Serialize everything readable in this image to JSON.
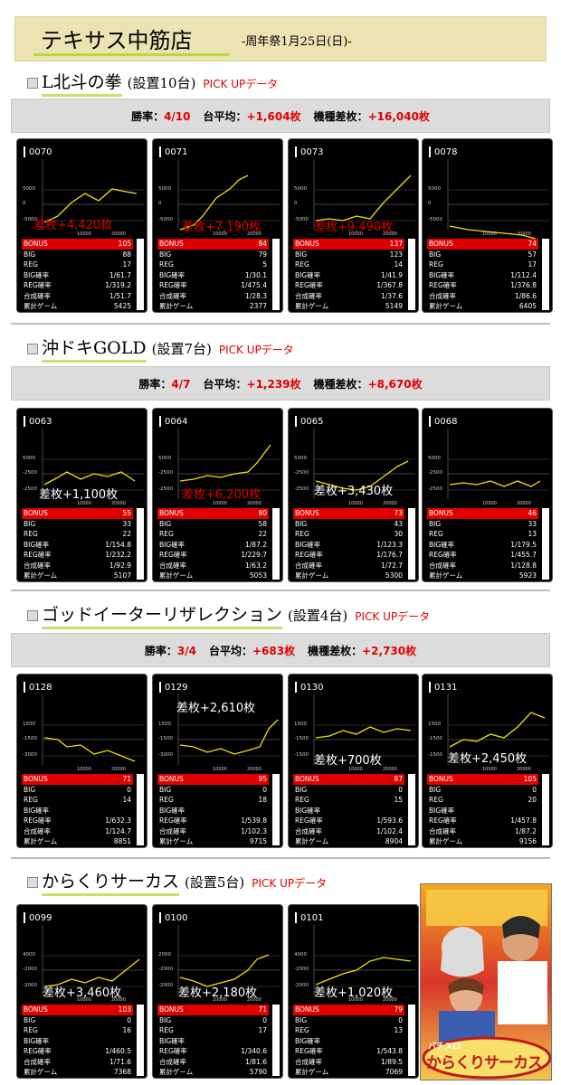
{
  "header": {
    "title": "テキサス中筋店",
    "subtitle": "-周年祭1月25日(日)-"
  },
  "sections": [
    {
      "machine": "L北斗の拳",
      "count_label": "(設置10台)",
      "pick_label": "PICK UPデータ",
      "stats": {
        "win_label": "勝率：",
        "win": "4/10",
        "avg_label": "台平均：",
        "avg": "+1,604枚",
        "diff_label": "機種差枚：",
        "diff": "+16,040枚"
      },
      "cards": [
        {
          "no": "0070",
          "diff": "差枚+4,420枚",
          "diff_color": "red",
          "bonus": "105",
          "big": "88",
          "reg": "17",
          "big_rate": "1/61.7",
          "reg_rate": "1/319.2",
          "total_rate": "1/51.7",
          "games": "5425",
          "axis_top": "5000",
          "axis_mid": "0",
          "axis_bot": "-5000",
          "x1": "10000",
          "x2": "20000"
        },
        {
          "no": "0071",
          "diff": "差枚+7,190枚",
          "diff_color": "red",
          "bonus": "84",
          "big": "79",
          "reg": "5",
          "big_rate": "1/30.1",
          "reg_rate": "1/475.4",
          "total_rate": "1/28.3",
          "games": "2377",
          "axis_top": "5000",
          "axis_mid": "0",
          "axis_bot": "-5000",
          "x1": "10000",
          "x2": "20000"
        },
        {
          "no": "0073",
          "diff": "差枚+9,490枚",
          "diff_color": "red",
          "bonus": "137",
          "big": "123",
          "reg": "14",
          "big_rate": "1/41.9",
          "reg_rate": "1/367.8",
          "total_rate": "1/37.6",
          "games": "5149",
          "axis_top": "5000",
          "axis_mid": "0",
          "axis_bot": "-5000",
          "x1": "10000",
          "x2": "20000"
        },
        {
          "no": "0078",
          "diff": "",
          "diff_color": "red",
          "bonus": "74",
          "big": "57",
          "reg": "17",
          "big_rate": "1/112.4",
          "reg_rate": "1/376.8",
          "total_rate": "1/86.6",
          "games": "6405",
          "axis_top": "5000",
          "axis_mid": "0",
          "axis_bot": "-5000",
          "x1": "10000",
          "x2": "20000"
        }
      ]
    },
    {
      "machine": "沖ドキGOLD",
      "count_label": "(設置7台)",
      "pick_label": "PICK UPデータ",
      "stats": {
        "win_label": "勝率：",
        "win": "4/7",
        "avg_label": "台平均：",
        "avg": "+1,239枚",
        "diff_label": "機種差枚：",
        "diff": "+8,670枚"
      },
      "cards": [
        {
          "no": "0063",
          "diff": "差枚+1,100枚",
          "diff_color": "white",
          "bonus": "55",
          "big": "33",
          "reg": "22",
          "big_rate": "1/154.8",
          "reg_rate": "1/232.2",
          "total_rate": "1/92.9",
          "games": "5107",
          "axis_top": "5000",
          "axis_mid": "-2500",
          "axis_bot": "-2500",
          "x1": "10000",
          "x2": "20000"
        },
        {
          "no": "0064",
          "diff": "差枚+6,200枚",
          "diff_color": "red",
          "bonus": "80",
          "big": "58",
          "reg": "22",
          "big_rate": "1/87.2",
          "reg_rate": "1/229.7",
          "total_rate": "1/63.2",
          "games": "5053",
          "axis_top": "5000",
          "axis_mid": "-2500",
          "axis_bot": "-2500",
          "x1": "10000",
          "x2": "20000"
        },
        {
          "no": "0065",
          "diff": "差枚+3,430枚",
          "diff_color": "white",
          "bonus": "73",
          "big": "43",
          "reg": "30",
          "big_rate": "1/123.3",
          "reg_rate": "1/176.7",
          "total_rate": "1/72.7",
          "games": "5300",
          "axis_top": "5000",
          "axis_mid": "-2500",
          "axis_bot": "-2500",
          "x1": "10000",
          "x2": "20000"
        },
        {
          "no": "0068",
          "diff": "",
          "diff_color": "white",
          "bonus": "46",
          "big": "33",
          "reg": "13",
          "big_rate": "1/179.5",
          "reg_rate": "1/455.7",
          "total_rate": "1/128.8",
          "games": "5923",
          "axis_top": "5000",
          "axis_mid": "-2500",
          "axis_bot": "-2500",
          "x1": "10000",
          "x2": "20000"
        }
      ]
    },
    {
      "machine": "ゴッドイーターリザレクション",
      "count_label": "(設置4台)",
      "pick_label": "PICK UPデータ",
      "stats": {
        "win_label": "勝率：",
        "win": "3/4",
        "avg_label": "台平均：",
        "avg": "+683枚",
        "diff_label": "機種差枚：",
        "diff": "+2,730枚"
      },
      "cards": [
        {
          "no": "0128",
          "diff": "",
          "diff_color": "white",
          "bonus": "71",
          "big": "0",
          "reg": "14",
          "big_rate": "",
          "reg_rate": "1/632.3",
          "total_rate": "1/124.7",
          "games": "8851",
          "axis_top": "1500",
          "axis_mid": "-1500",
          "axis_bot": "-3000",
          "x1": "10000",
          "x2": "20000"
        },
        {
          "no": "0129",
          "diff": "差枚+2,610枚",
          "diff_color": "white",
          "bonus": "95",
          "big": "0",
          "reg": "18",
          "big_rate": "",
          "reg_rate": "1/539.8",
          "total_rate": "1/102.3",
          "games": "9715",
          "axis_top": "1500",
          "axis_mid": "-1500",
          "axis_bot": "-3000",
          "x1": "10000",
          "x2": "20000"
        },
        {
          "no": "0130",
          "diff": "差枚+700枚",
          "diff_color": "white",
          "bonus": "87",
          "big": "0",
          "reg": "15",
          "big_rate": "",
          "reg_rate": "1/593.6",
          "total_rate": "1/102.4",
          "games": "8904",
          "axis_top": "1500",
          "axis_mid": "-1500",
          "axis_bot": "-1500",
          "x1": "10000",
          "x2": "20000"
        },
        {
          "no": "0131",
          "diff": "差枚+2,450枚",
          "diff_color": "white",
          "bonus": "105",
          "big": "0",
          "reg": "20",
          "big_rate": "",
          "reg_rate": "1/457.8",
          "total_rate": "1/87.2",
          "games": "9156",
          "axis_top": "1500",
          "axis_mid": "-1500",
          "axis_bot": "-1500",
          "x1": "10000",
          "x2": "20000"
        }
      ]
    },
    {
      "machine": "からくりサーカス",
      "count_label": "(設置5台)",
      "pick_label": "PICK UPデータ",
      "cards": [
        {
          "no": "0099",
          "diff": "差枚+3,460枚",
          "diff_color": "white",
          "bonus": "103",
          "big": "0",
          "reg": "16",
          "big_rate": "",
          "reg_rate": "1/460.5",
          "total_rate": "1/71.6",
          "games": "7368",
          "axis_top": "4000",
          "axis_mid": "-2000",
          "axis_bot": "-2000",
          "x1": "10000",
          "x2": "20000"
        },
        {
          "no": "0100",
          "diff": "差枚+2,180枚",
          "diff_color": "white",
          "bonus": "71",
          "big": "0",
          "reg": "17",
          "big_rate": "",
          "reg_rate": "1/340.6",
          "total_rate": "1/81.6",
          "games": "5790",
          "axis_top": "2000",
          "axis_mid": "-2000",
          "axis_bot": "-2000",
          "x1": "10000",
          "x2": "20000"
        },
        {
          "no": "0101",
          "diff": "差枚+1,020枚",
          "diff_color": "white",
          "bonus": "79",
          "big": "0",
          "reg": "13",
          "big_rate": "",
          "reg_rate": "1/543.8",
          "total_rate": "1/89.5",
          "games": "7069",
          "axis_top": "4000",
          "axis_mid": "-2000",
          "axis_bot": "-2000",
          "x1": "10000",
          "x2": "20000"
        }
      ]
    }
  ],
  "labels": {
    "bonus": "BONUS",
    "big": "BIG",
    "reg": "REG",
    "big_rate": "BIG確率",
    "reg_rate": "REG確率",
    "total_rate": "合成確率",
    "games": "累計ゲーム"
  },
  "promo_image": {
    "logo_text": "からくりサーカス",
    "brand_text": "パチスロ"
  },
  "colors": {
    "header_bg": "#ebe3b2",
    "accent_green": "#b5d93e",
    "pick_red": "#e00000",
    "line_yellow": "#f2e300",
    "card_bg": "#000000"
  }
}
